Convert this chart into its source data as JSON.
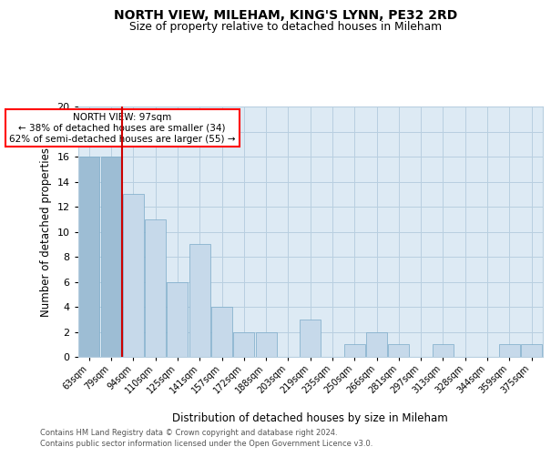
{
  "title": "NORTH VIEW, MILEHAM, KING'S LYNN, PE32 2RD",
  "subtitle": "Size of property relative to detached houses in Mileham",
  "xlabel": "Distribution of detached houses by size in Mileham",
  "ylabel": "Number of detached properties",
  "categories": [
    "63sqm",
    "79sqm",
    "94sqm",
    "110sqm",
    "125sqm",
    "141sqm",
    "157sqm",
    "172sqm",
    "188sqm",
    "203sqm",
    "219sqm",
    "235sqm",
    "250sqm",
    "266sqm",
    "281sqm",
    "297sqm",
    "313sqm",
    "328sqm",
    "344sqm",
    "359sqm",
    "375sqm"
  ],
  "values": [
    16,
    16,
    13,
    11,
    6,
    9,
    4,
    2,
    2,
    0,
    3,
    0,
    1,
    2,
    1,
    0,
    1,
    0,
    0,
    1,
    1
  ],
  "bar_color_light": "#c6d9ea",
  "bar_color_dark": "#9dbdd4",
  "highlight_upto_index": 1,
  "vertical_line_index": 2,
  "ylim": [
    0,
    20
  ],
  "yticks": [
    0,
    2,
    4,
    6,
    8,
    10,
    12,
    14,
    16,
    18,
    20
  ],
  "annotation_title": "NORTH VIEW: 97sqm",
  "annotation_line1": "← 38% of detached houses are smaller (34)",
  "annotation_line2": "62% of semi-detached houses are larger (55) →",
  "footnote1": "Contains HM Land Registry data © Crown copyright and database right 2024.",
  "footnote2": "Contains public sector information licensed under the Open Government Licence v3.0.",
  "bg_color": "#ffffff",
  "plot_bg_color": "#ddeaf4",
  "grid_color": "#b8cfe0",
  "bar_edge_color": "#7aaac8",
  "vline_color": "#cc0000"
}
